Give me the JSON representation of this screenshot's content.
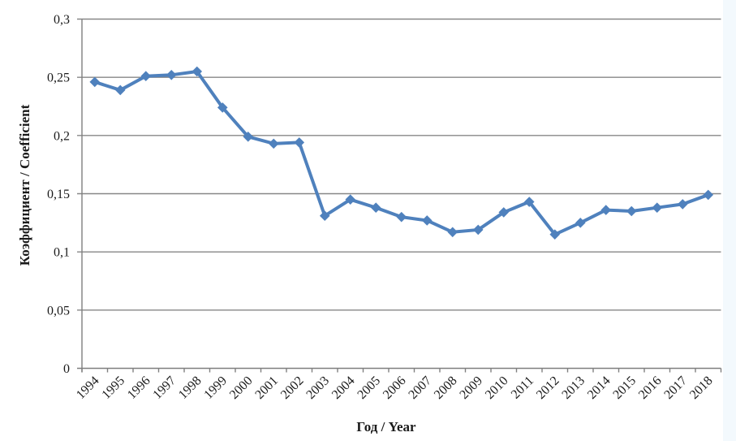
{
  "chart_data": {
    "type": "line",
    "title": "",
    "xlabel": "Год / Year",
    "ylabel": "Коэффициент / Coefficient",
    "categories": [
      "1994",
      "1995",
      "1996",
      "1997",
      "1998",
      "1999",
      "2000",
      "2001",
      "2002",
      "2003",
      "2004",
      "2005",
      "2006",
      "2007",
      "2008",
      "2009",
      "2010",
      "2011",
      "2012",
      "2013",
      "2014",
      "2015",
      "2016",
      "2017",
      "2018"
    ],
    "values": [
      0.246,
      0.239,
      0.251,
      0.252,
      0.255,
      0.224,
      0.199,
      0.193,
      0.194,
      0.131,
      0.145,
      0.138,
      0.13,
      0.127,
      0.117,
      0.119,
      0.134,
      0.143,
      0.115,
      0.125,
      0.136,
      0.135,
      0.138,
      0.141,
      0.149
    ],
    "ylim": [
      0,
      0.3
    ],
    "ytick_step": 0.05,
    "ytick_labels": [
      "0",
      "0,05",
      "0,1",
      "0,15",
      "0,2",
      "0,25",
      "0,3"
    ],
    "grid": true,
    "legend": "none",
    "marker": "diamond",
    "line_color": "#4f81bd",
    "gridline_color": "#878787",
    "axis_color": "#7f7f7f",
    "text_color": "#1a1a1a",
    "background_color": "#ffffff"
  }
}
